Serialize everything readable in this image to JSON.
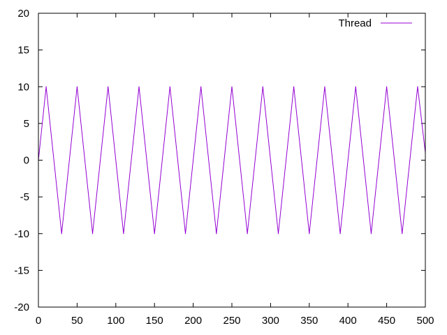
{
  "chart_data": {
    "type": "line",
    "title": "",
    "xlabel": "",
    "ylabel": "",
    "xlim": [
      0,
      500
    ],
    "ylim": [
      -20,
      20
    ],
    "x_ticks": [
      0,
      50,
      100,
      150,
      200,
      250,
      300,
      350,
      400,
      450,
      500
    ],
    "y_ticks": [
      -20,
      -15,
      -10,
      -5,
      0,
      5,
      10,
      15,
      20
    ],
    "x_tick_labels": [
      "0",
      "50",
      "100",
      "150",
      "200",
      "250",
      "300",
      "350",
      "400",
      "450",
      "500"
    ],
    "y_tick_labels": [
      "-20",
      "-15",
      "-10",
      "-5",
      "0",
      "5",
      "10",
      "15",
      "20"
    ],
    "grid": false,
    "legend": {
      "position": "top-right"
    },
    "series": [
      {
        "name": "Thread",
        "color": "#9400d3",
        "x": [
          0,
          10,
          30,
          50,
          70,
          90,
          110,
          130,
          150,
          170,
          190,
          210,
          230,
          250,
          270,
          290,
          310,
          330,
          350,
          370,
          390,
          410,
          430,
          450,
          470,
          490,
          500
        ],
        "y": [
          0,
          10,
          -10,
          10,
          -10,
          10,
          -10,
          10,
          -10,
          10,
          -10,
          10,
          -10,
          10,
          -10,
          10,
          -10,
          10,
          -10,
          10,
          -10,
          10,
          -10,
          10,
          -10,
          10,
          1
        ]
      }
    ]
  }
}
